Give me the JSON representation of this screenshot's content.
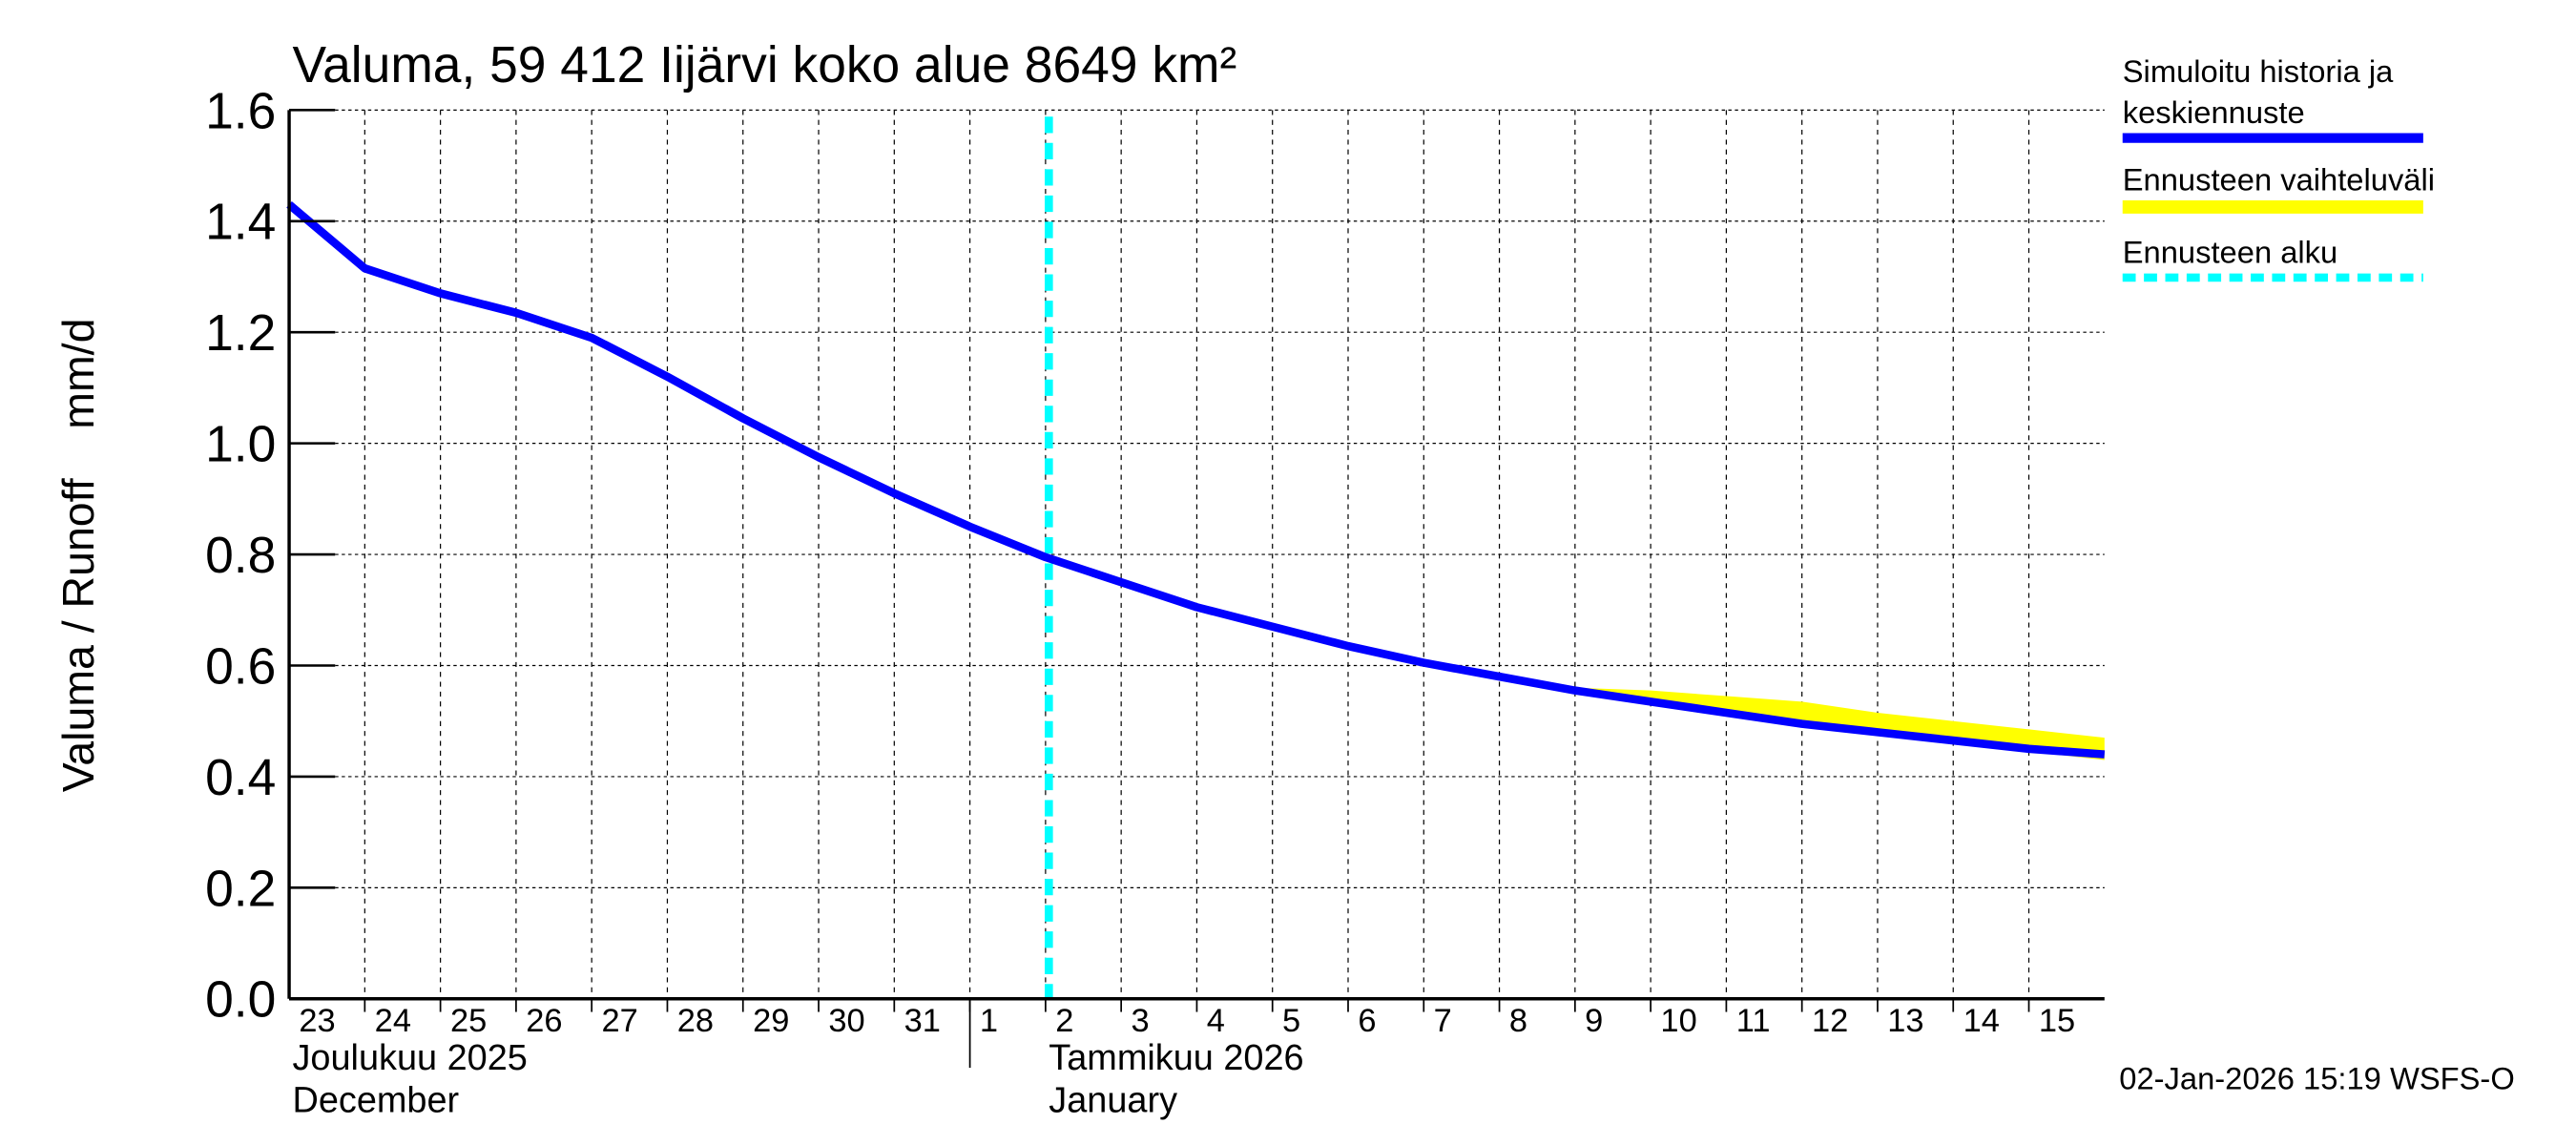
{
  "chart_data": {
    "type": "line",
    "title": "Valuma, 59 412 Iijärvi koko alue 8649 km²",
    "ylabel": "Valuma / Runoff    mm/d",
    "ylim": [
      0.0,
      1.6
    ],
    "yticks": [
      "0.0",
      "0.2",
      "0.4",
      "0.6",
      "0.8",
      "1.0",
      "1.2",
      "1.4",
      "1.6"
    ],
    "grid": true,
    "legend_placement": "right",
    "x_dates": [
      "2025-12-23",
      "2025-12-24",
      "2025-12-25",
      "2025-12-26",
      "2025-12-27",
      "2025-12-28",
      "2025-12-29",
      "2025-12-30",
      "2025-12-31",
      "2026-01-01",
      "2026-01-02",
      "2026-01-03",
      "2026-01-04",
      "2026-01-05",
      "2026-01-06",
      "2026-01-07",
      "2026-01-08",
      "2026-01-09",
      "2026-01-10",
      "2026-01-11",
      "2026-01-12",
      "2026-01-13",
      "2026-01-14",
      "2026-01-15",
      "2026-01-16"
    ],
    "xtick_labels": [
      "23",
      "24",
      "25",
      "26",
      "27",
      "28",
      "29",
      "30",
      "31",
      "1",
      "2",
      "3",
      "4",
      "5",
      "6",
      "7",
      "8",
      "9",
      "10",
      "11",
      "12",
      "13",
      "14",
      "15"
    ],
    "month_labels": [
      {
        "fi": "Joulukuu  2025",
        "en": "December"
      },
      {
        "fi": "Tammikuu  2026",
        "en": "January"
      }
    ],
    "forecast_start": "2026-01-02",
    "series": [
      {
        "name": "Simuloitu historia ja keskiennuste",
        "color": "#0000ff",
        "values": [
          1.43,
          1.315,
          1.27,
          1.235,
          1.19,
          1.12,
          1.045,
          0.975,
          0.91,
          0.85,
          0.795,
          0.75,
          0.705,
          0.67,
          0.635,
          0.605,
          0.58,
          0.555,
          0.535,
          0.515,
          0.495,
          0.48,
          0.465,
          0.45,
          0.44
        ]
      }
    ],
    "band": {
      "name": "Ennusteen vaihteluväli",
      "color": "#ffff00",
      "x_dates": [
        "2026-01-09",
        "2026-01-10",
        "2026-01-11",
        "2026-01-12",
        "2026-01-13",
        "2026-01-14",
        "2026-01-15",
        "2026-01-16"
      ],
      "upper": [
        0.56,
        0.555,
        0.545,
        0.535,
        0.515,
        0.5,
        0.485,
        0.47
      ],
      "lower": [
        0.555,
        0.53,
        0.51,
        0.49,
        0.475,
        0.46,
        0.445,
        0.43
      ]
    },
    "legend": [
      {
        "label_line1": "Simuloitu historia ja",
        "label_line2": "keskiennuste",
        "color": "#0000ff",
        "style": "solid"
      },
      {
        "label_line1": "Ennusteen vaihteluväli",
        "color": "#ffff00",
        "style": "band"
      },
      {
        "label_line1": "Ennusteen alku",
        "color": "#00ffff",
        "style": "dashed"
      }
    ],
    "footer": "02-Jan-2026 15:19 WSFS-O"
  }
}
